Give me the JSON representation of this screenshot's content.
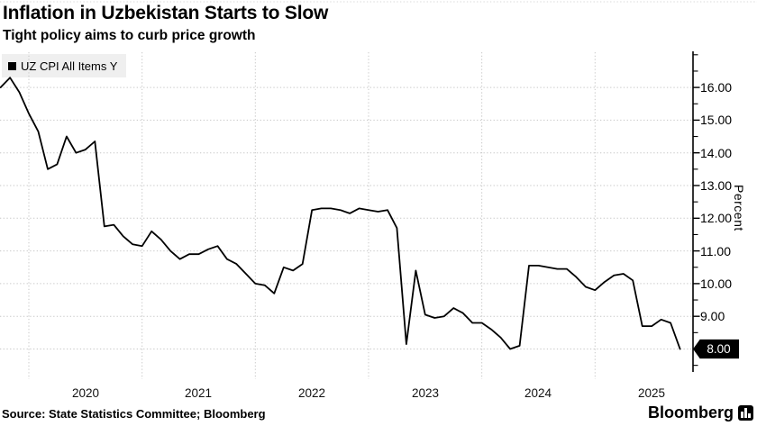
{
  "header": {
    "title": "Inflation in Uzbekistan Starts to Slow",
    "subtitle": "Tight policy aims to curb price growth"
  },
  "legend": {
    "label": "UZ CPI All Items Y",
    "marker_color": "#000000"
  },
  "source_line": "Source: State Statistics Committee; Bloomberg",
  "branding": {
    "wordmark": "Bloomberg",
    "icon": "bloomberg-terminal-icon"
  },
  "chart_data": {
    "type": "line",
    "title": "Inflation in Uzbekistan Starts to Slow",
    "subtitle": "Tight policy aims to curb price growth",
    "legend_position": "top-left",
    "grid": "dotted",
    "line_color": "#000000",
    "last_value_label": "8.00",
    "x_axis": {
      "tick_labels": [
        "2020",
        "2021",
        "2022",
        "2023",
        "2024",
        "2025"
      ],
      "range_start": "2019-09",
      "range_end": "2025-09"
    },
    "y_axis": {
      "title": "Percent",
      "side": "right",
      "tick_labels": [
        "16.00",
        "15.00",
        "14.00",
        "13.00",
        "12.00",
        "11.00",
        "10.00",
        "9.00",
        "8.00"
      ],
      "minor_ticks": [
        17.0,
        16.5,
        15.5,
        14.5,
        13.5,
        12.5,
        11.5,
        10.5,
        9.5,
        8.5,
        7.5
      ],
      "ylim": [
        7.4,
        17.1
      ]
    },
    "series": [
      {
        "name": "UZ CPI All Items Y",
        "color": "#000000",
        "x_months": [
          "2019-09",
          "2019-10",
          "2019-11",
          "2019-12",
          "2020-01",
          "2020-02",
          "2020-03",
          "2020-04",
          "2020-05",
          "2020-06",
          "2020-07",
          "2020-08",
          "2020-09",
          "2020-10",
          "2020-11",
          "2020-12",
          "2021-01",
          "2021-02",
          "2021-03",
          "2021-04",
          "2021-05",
          "2021-06",
          "2021-07",
          "2021-08",
          "2021-09",
          "2021-10",
          "2021-11",
          "2021-12",
          "2022-01",
          "2022-02",
          "2022-03",
          "2022-04",
          "2022-05",
          "2022-06",
          "2022-07",
          "2022-08",
          "2022-09",
          "2022-10",
          "2022-11",
          "2022-12",
          "2023-01",
          "2023-02",
          "2023-03",
          "2023-04",
          "2023-05",
          "2023-06",
          "2023-07",
          "2023-08",
          "2023-09",
          "2023-10",
          "2023-11",
          "2023-12",
          "2024-01",
          "2024-02",
          "2024-03",
          "2024-04",
          "2024-05",
          "2024-06",
          "2024-07",
          "2024-08",
          "2024-09",
          "2024-10",
          "2024-11",
          "2024-12",
          "2025-01",
          "2025-02",
          "2025-03",
          "2025-04",
          "2025-05",
          "2025-06",
          "2025-07",
          "2025-08",
          "2025-09"
        ],
        "values": [
          16.0,
          16.3,
          15.85,
          15.2,
          14.65,
          13.5,
          13.65,
          14.5,
          14.0,
          14.1,
          14.35,
          11.75,
          11.8,
          11.45,
          11.2,
          11.15,
          11.6,
          11.35,
          11.0,
          10.75,
          10.9,
          10.9,
          11.05,
          11.15,
          10.75,
          10.6,
          10.3,
          10.0,
          9.95,
          9.7,
          10.5,
          10.4,
          10.6,
          12.25,
          12.3,
          12.3,
          12.25,
          12.15,
          12.3,
          12.25,
          12.2,
          12.25,
          11.7,
          8.15,
          10.4,
          9.05,
          8.95,
          9.0,
          9.25,
          9.1,
          8.8,
          8.8,
          8.6,
          8.35,
          8.0,
          8.1,
          10.55,
          10.55,
          10.5,
          10.45,
          10.45,
          10.2,
          9.9,
          9.8,
          10.05,
          10.25,
          10.3,
          10.1,
          8.7,
          8.7,
          8.9,
          8.8,
          8.0
        ]
      }
    ]
  }
}
